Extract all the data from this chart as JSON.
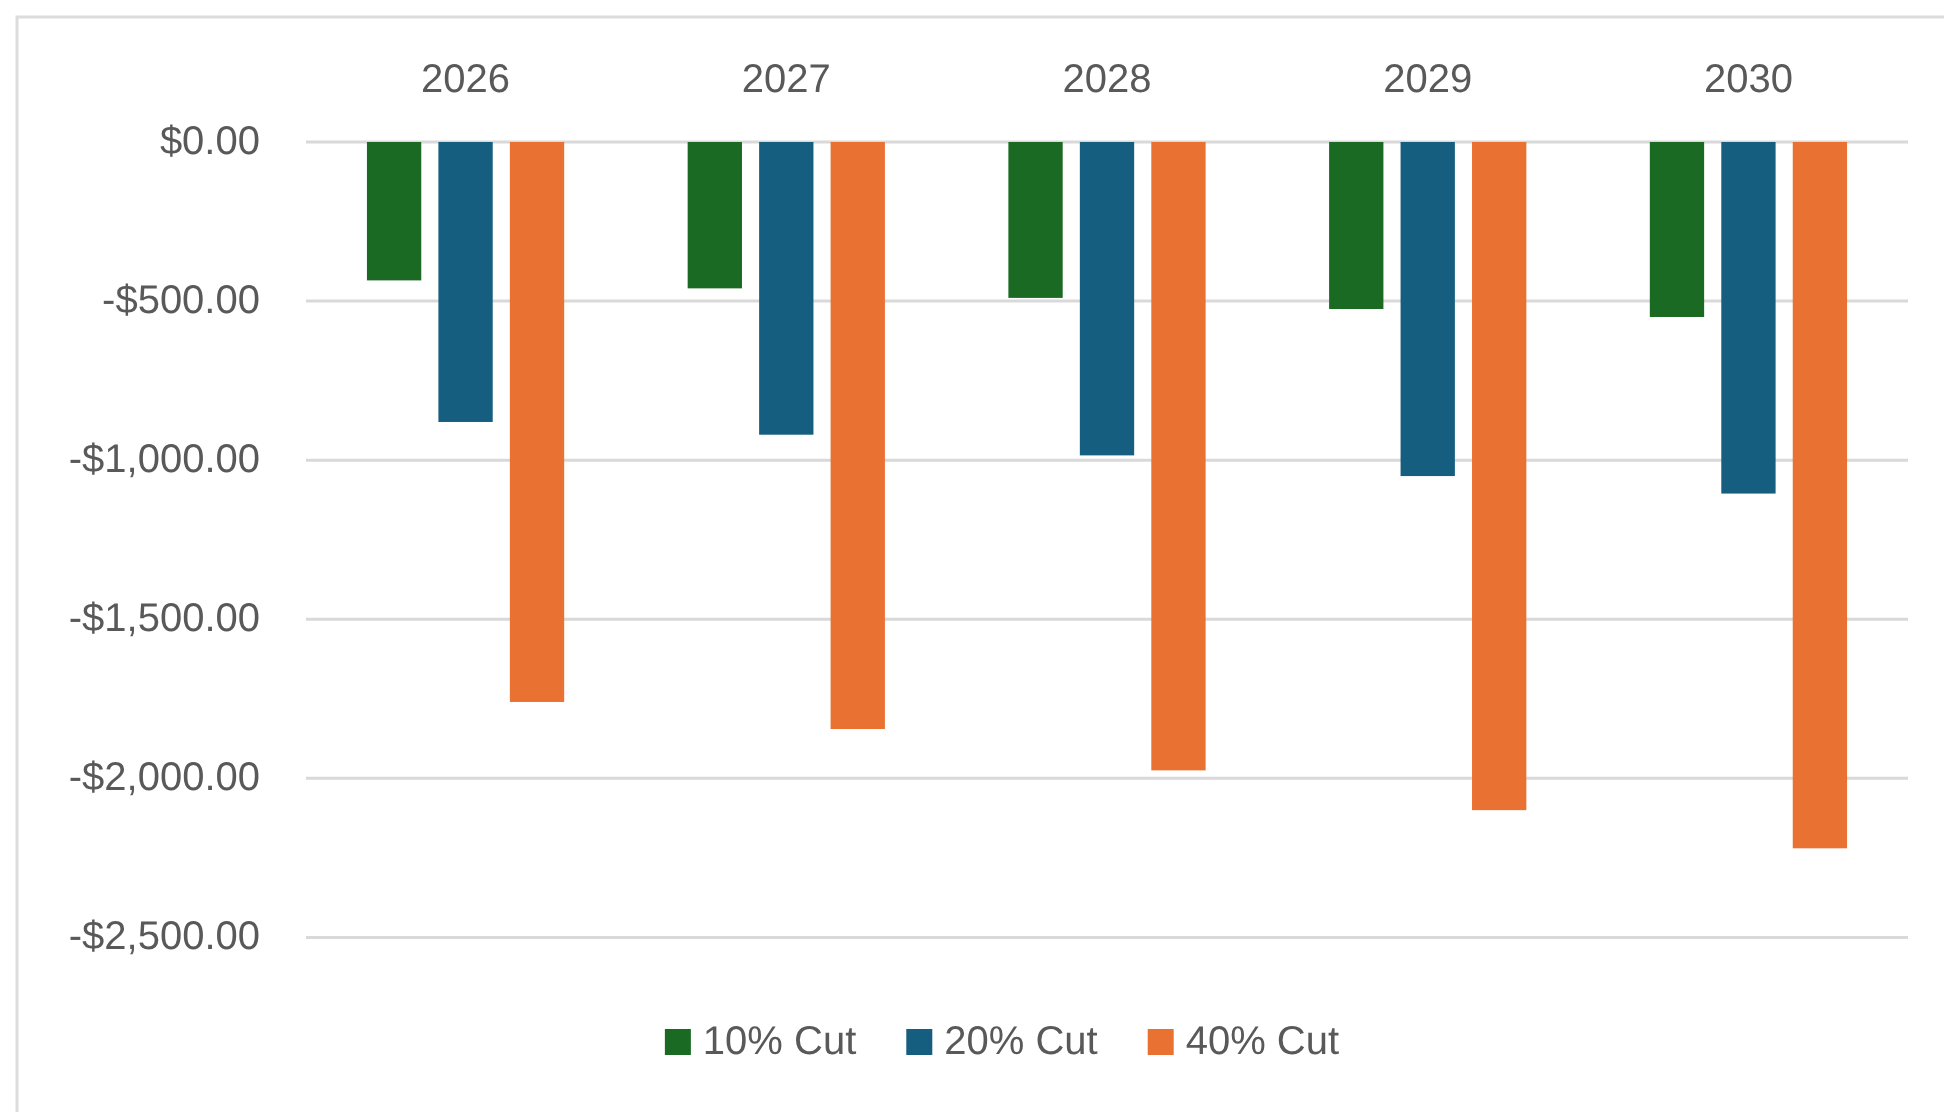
{
  "chart_data": {
    "type": "bar",
    "categories": [
      "2026",
      "2027",
      "2028",
      "2029",
      "2030"
    ],
    "series": [
      {
        "name": "10% Cut",
        "color": "#1b6a23",
        "values": [
          -435,
          -460,
          -490,
          -525,
          -550
        ]
      },
      {
        "name": "20% Cut",
        "color": "#165e80",
        "values": [
          -880,
          -920,
          -985,
          -1050,
          -1105
        ]
      },
      {
        "name": "40% Cut",
        "color": "#e97132",
        "values": [
          -1760,
          -1845,
          -1975,
          -2100,
          -2220
        ]
      }
    ],
    "ylim": [
      -2500,
      0
    ],
    "yticks": [
      {
        "value": 0,
        "label": "$0.00"
      },
      {
        "value": -500,
        "label": "-$500.00"
      },
      {
        "value": -1000,
        "label": "-$1,000.00"
      },
      {
        "value": -1500,
        "label": "-$1,500.00"
      },
      {
        "value": -2000,
        "label": "-$2,000.00"
      },
      {
        "value": -2500,
        "label": "-$2,500.00"
      }
    ],
    "grid": "y",
    "legend": "bottom"
  }
}
